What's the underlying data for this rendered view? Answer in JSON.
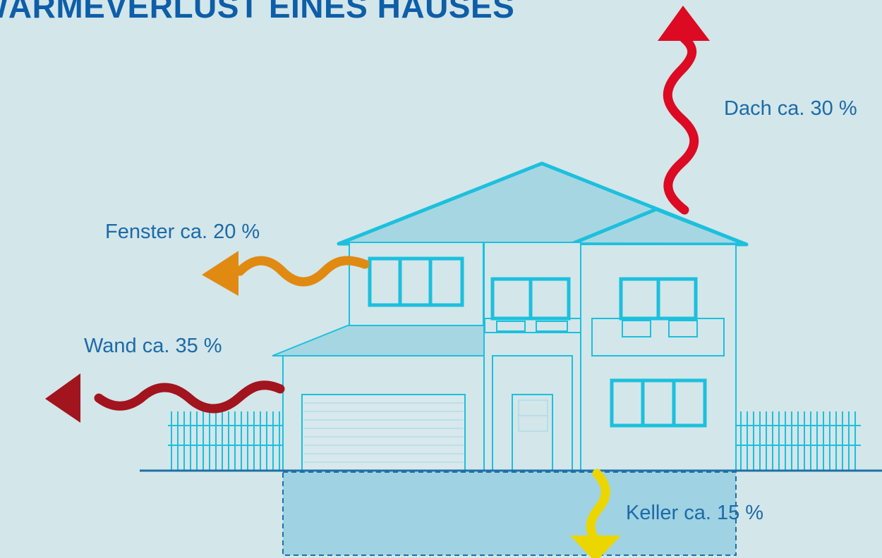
{
  "title": "WÄRMEVERLUST EINES HAUSES",
  "labels": {
    "dach": "Dach ca. 30 %",
    "fenster": "Fenster ca. 20 %",
    "wand": "Wand ca. 35 %",
    "keller": "Keller ca. 15 %"
  },
  "colors": {
    "background": "#d3e6ea",
    "house_line": "#1cc0dc",
    "house_fill": "#a7d6e3",
    "label_text": "#1c6aa8",
    "title_text": "#0e5ea8",
    "arrow_dach": "#dc0a22",
    "arrow_fenster": "#e08a12",
    "arrow_wand": "#a2141e",
    "arrow_keller": "#ecd600"
  },
  "icons": {
    "dach": "wavy-arrow-up-icon",
    "fenster": "wavy-arrow-left-icon",
    "wand": "wavy-arrow-left-icon",
    "keller": "wavy-arrow-down-icon"
  }
}
